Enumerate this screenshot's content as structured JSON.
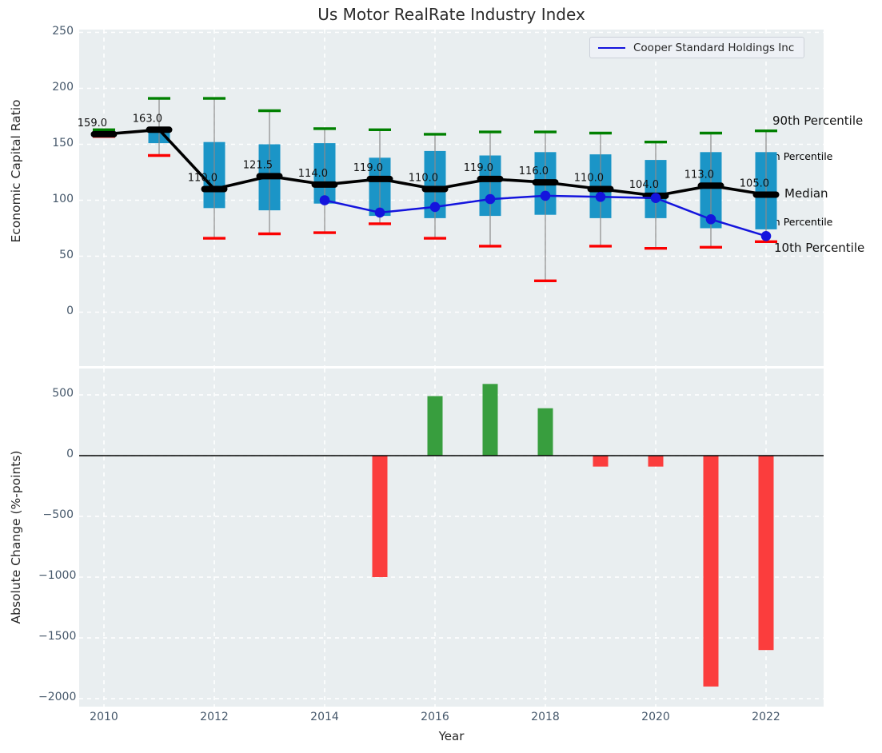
{
  "title": "Us Motor RealRate Industry Index",
  "legend": {
    "label": "Cooper Standard Holdings Inc"
  },
  "axes": {
    "top": {
      "ylabel": "Economic Capital Ratio",
      "yticks": [
        250,
        200,
        150,
        100,
        50,
        0
      ],
      "ylim": [
        -48,
        252
      ],
      "grid": "white dashed"
    },
    "bottom": {
      "ylabel": "Absolute Change (%-points)",
      "xlabel": "Year",
      "yticks": [
        500,
        0,
        -500,
        -1000,
        -1500,
        -2000
      ],
      "ylim": [
        -2060,
        715
      ],
      "xticks": [
        2010,
        2012,
        2014,
        2016,
        2018,
        2020,
        2022
      ],
      "grid": "white dashed"
    }
  },
  "annotations": {
    "p90": "90th Percentile",
    "p75": "75th Percentile",
    "median": "Median",
    "p25": "25th Percentile",
    "p10": "10th Percentile"
  },
  "colors": {
    "box_fill": "#1b95c7",
    "whisker": "#8a8a8a",
    "cap_high_green": "#008000",
    "cap_low_red": "#fb0000",
    "median_black": "#000000",
    "cooper_blue": "#1414dd",
    "bar_positive_green": "#389e3e",
    "bar_negative_red": "#fb3d3d",
    "plot_bg": "#e9eef0",
    "annot_cyan": "#18a0d0",
    "tick_color": "#46586b"
  },
  "chart_data": [
    {
      "type": "boxplot+line",
      "title": "Us Motor RealRate Industry Index",
      "xlabel": "Year",
      "ylabel": "Economic Capital Ratio",
      "ylim": [
        -48,
        252
      ],
      "years": [
        2010,
        2011,
        2012,
        2013,
        2014,
        2015,
        2016,
        2017,
        2018,
        2019,
        2020,
        2021,
        2022
      ],
      "p90": [
        163,
        191,
        191,
        180,
        164,
        163,
        159,
        161,
        161,
        160,
        152,
        160,
        162
      ],
      "p75": [
        161,
        164,
        152,
        150,
        151,
        138,
        144,
        140,
        143,
        141,
        136,
        143,
        143
      ],
      "median": [
        159,
        163,
        110,
        121.5,
        114,
        119,
        110,
        119,
        116,
        110,
        104,
        113,
        105
      ],
      "p25": [
        157,
        151,
        93,
        91,
        97,
        86,
        84,
        86,
        87,
        84,
        84,
        75,
        74
      ],
      "p10": [
        157,
        140,
        66,
        70,
        71,
        79,
        66,
        59,
        28,
        59,
        57,
        58,
        63
      ],
      "median_labels": [
        "159.0",
        "163.0",
        "110.0",
        "121.5",
        "114.0",
        "119.0",
        "110.0",
        "119.0",
        "116.0",
        "110.0",
        "104.0",
        "113.0",
        "105.0"
      ],
      "series": [
        {
          "name": "Cooper Standard Holdings Inc",
          "x": [
            2014,
            2015,
            2016,
            2017,
            2018,
            2019,
            2020,
            2021,
            2022
          ],
          "y": [
            100,
            89,
            94,
            101,
            104,
            103,
            102,
            83,
            68
          ]
        }
      ],
      "legend_position": "upper right"
    },
    {
      "type": "bar",
      "xlabel": "Year",
      "ylabel": "Absolute Change (%-points)",
      "ylim": [
        -2060,
        715
      ],
      "x": [
        2015,
        2016,
        2017,
        2018,
        2019,
        2020,
        2021,
        2022
      ],
      "values": [
        -1000,
        490,
        590,
        390,
        -90,
        -90,
        -1900,
        -1600
      ],
      "baseline": 0
    }
  ]
}
